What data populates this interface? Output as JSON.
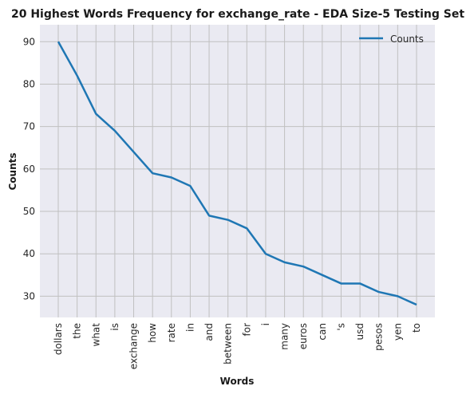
{
  "chart_data": {
    "type": "line",
    "title": "20 Highest Words Frequency for exchange_rate - EDA Size-5 Testing Set",
    "xlabel": "Words",
    "ylabel": "Counts",
    "categories": [
      "dollars",
      "the",
      "what",
      "is",
      "exchange",
      "how",
      "rate",
      "in",
      "and",
      "between",
      "for",
      "i",
      "many",
      "euros",
      "can",
      "'s",
      "usd",
      "pesos",
      "yen",
      "to"
    ],
    "series": [
      {
        "name": "Counts",
        "values": [
          90,
          82,
          73,
          69,
          64,
          59,
          58,
          56,
          49,
          48,
          46,
          40,
          38,
          37,
          35,
          33,
          33,
          31,
          30,
          28
        ]
      }
    ],
    "ylim": [
      25,
      94
    ],
    "yticks": [
      30,
      40,
      50,
      60,
      70,
      80,
      90
    ],
    "grid": true,
    "legend": "top-right",
    "colors": {
      "line": "#1f77b4",
      "plot_bg": "#eaeaf2",
      "grid": "#c0c0c0"
    }
  }
}
